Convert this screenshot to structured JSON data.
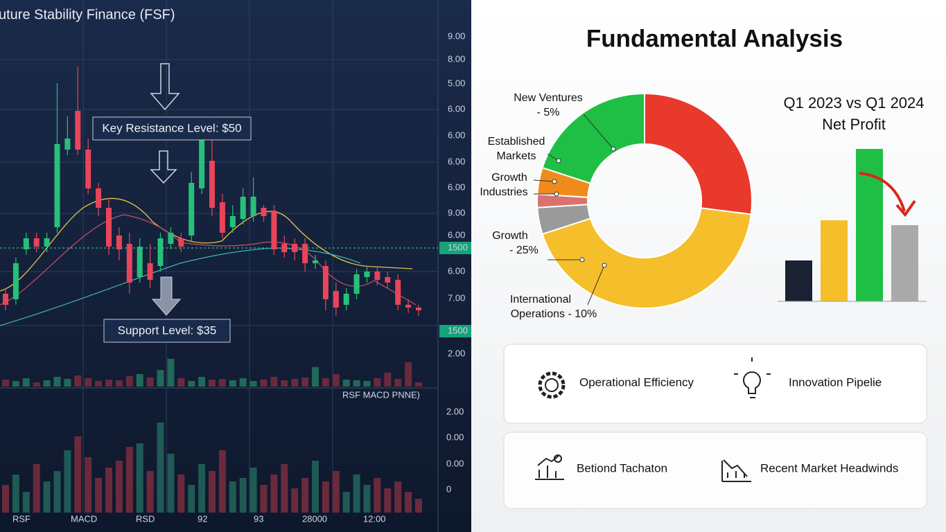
{
  "left_panel": {
    "title": "uture Stability Finance (FSF)",
    "resistance_label": "Key Resistance Level: $50",
    "support_label": "Support Level: $35",
    "price_axis_labels": [
      "9.00",
      "8.00",
      "5.00",
      "6.00",
      "6.00",
      "6.00",
      "6.00",
      "9.00",
      "6.00",
      "1500",
      "6.00",
      "7.00",
      "1500",
      "2.00"
    ],
    "indicator_axis_labels": [
      "2.00",
      "0.00",
      "0.00",
      "0"
    ],
    "indicator_title": "RSF MACD PNNE)",
    "x_labels": [
      "RSF",
      "MACD",
      "RSD",
      "92",
      "93",
      "28000",
      "12:00"
    ],
    "candles": [
      {
        "o": 24,
        "c": 20,
        "h": 26,
        "l": 18
      },
      {
        "o": 22,
        "c": 35,
        "h": 37,
        "l": 20
      },
      {
        "o": 40,
        "c": 44,
        "h": 46,
        "l": 38
      },
      {
        "o": 44,
        "c": 41,
        "h": 46,
        "l": 39
      },
      {
        "o": 41,
        "c": 44,
        "h": 46,
        "l": 39
      },
      {
        "o": 48,
        "c": 78,
        "h": 100,
        "l": 46
      },
      {
        "o": 76,
        "c": 80,
        "h": 88,
        "l": 74
      },
      {
        "o": 90,
        "c": 76,
        "h": 106,
        "l": 74
      },
      {
        "o": 76,
        "c": 62,
        "h": 80,
        "l": 60
      },
      {
        "o": 62,
        "c": 55,
        "h": 64,
        "l": 52
      },
      {
        "o": 55,
        "c": 41,
        "h": 58,
        "l": 38
      },
      {
        "o": 45,
        "c": 40,
        "h": 48,
        "l": 36
      },
      {
        "o": 42,
        "c": 28,
        "h": 46,
        "l": 24
      },
      {
        "o": 30,
        "c": 41,
        "h": 44,
        "l": 28
      },
      {
        "o": 35,
        "c": 29,
        "h": 42,
        "l": 26
      },
      {
        "o": 34,
        "c": 44,
        "h": 46,
        "l": 32
      },
      {
        "o": 42,
        "c": 46,
        "h": 48,
        "l": 40
      },
      {
        "o": 44,
        "c": 41,
        "h": 46,
        "l": 39
      },
      {
        "o": 45,
        "c": 64,
        "h": 68,
        "l": 43
      },
      {
        "o": 62,
        "c": 80,
        "h": 84,
        "l": 60
      },
      {
        "o": 72,
        "c": 55,
        "h": 80,
        "l": 52
      },
      {
        "o": 57,
        "c": 46,
        "h": 60,
        "l": 44
      },
      {
        "o": 48,
        "c": 52,
        "h": 56,
        "l": 46
      },
      {
        "o": 51,
        "c": 59,
        "h": 62,
        "l": 49
      },
      {
        "o": 52,
        "c": 59,
        "h": 66,
        "l": 50
      },
      {
        "o": 55,
        "c": 52,
        "h": 56,
        "l": 50
      },
      {
        "o": 54,
        "c": 40,
        "h": 56,
        "l": 38
      },
      {
        "o": 42,
        "c": 39,
        "h": 45,
        "l": 37
      },
      {
        "o": 42,
        "c": 39,
        "h": 44,
        "l": 36
      },
      {
        "o": 42,
        "c": 35,
        "h": 44,
        "l": 32
      },
      {
        "o": 35,
        "c": 36,
        "h": 38,
        "l": 33
      },
      {
        "o": 34,
        "c": 22,
        "h": 36,
        "l": 18
      },
      {
        "o": 25,
        "c": 19,
        "h": 28,
        "l": 16
      },
      {
        "o": 20,
        "c": 24,
        "h": 26,
        "l": 18
      },
      {
        "o": 24,
        "c": 31,
        "h": 33,
        "l": 22
      },
      {
        "o": 30,
        "c": 32,
        "h": 34,
        "l": 28
      },
      {
        "o": 32,
        "c": 29,
        "h": 34,
        "l": 27
      },
      {
        "o": 30,
        "c": 28,
        "h": 32,
        "l": 26
      },
      {
        "o": 29,
        "c": 20,
        "h": 31,
        "l": 18
      },
      {
        "o": 20,
        "c": 19,
        "h": 22,
        "l": 17
      },
      {
        "o": 19,
        "c": 18,
        "h": 20,
        "l": 16
      }
    ],
    "volume": [
      10,
      8,
      12,
      6,
      9,
      14,
      11,
      16,
      12,
      8,
      10,
      9,
      15,
      18,
      13,
      24,
      40,
      12,
      8,
      14,
      10,
      11,
      9,
      12,
      8,
      10,
      14,
      9,
      11,
      13,
      28,
      12,
      18,
      10,
      9,
      8,
      12,
      20,
      11,
      35,
      6
    ],
    "indicator": [
      40,
      55,
      30,
      70,
      45,
      60,
      90,
      110,
      80,
      50,
      65,
      75,
      95,
      100,
      60,
      130,
      85,
      55,
      40,
      70,
      60,
      90,
      45,
      50,
      65,
      40,
      55,
      70,
      35,
      50,
      75,
      45,
      60,
      30,
      55,
      40,
      50,
      35,
      45,
      30,
      20
    ]
  },
  "right_panel": {
    "title": "Fundamental Analysis",
    "donut": {
      "segments": [
        {
          "color": "#e8392c",
          "value": 27
        },
        {
          "color": "#f4bf2a",
          "value": 43
        },
        {
          "color": "#9a9a9a",
          "value": 4
        },
        {
          "color": "#d9736f",
          "value": 2
        },
        {
          "color": "#f08a1c",
          "value": 4
        },
        {
          "color": "#1fbf45",
          "value": 20
        }
      ],
      "labels": [
        "New Ventures",
        "- 5%",
        "Established",
        "Markets",
        "Growth",
        "Industries",
        "Growth",
        "- 25%",
        "International",
        "Operations - 10%"
      ]
    },
    "bar_chart": {
      "title": "Q1 2023 vs Q1 2024",
      "subtitle": "Net Profit",
      "bars": [
        {
          "color": "#1a2234",
          "value": 59
        },
        {
          "color": "#f4bf2a",
          "value": 117
        },
        {
          "color": "#1fbf45",
          "value": 220
        },
        {
          "color": "#aaaaaa",
          "value": 110
        }
      ]
    },
    "cards": [
      "Operational Efficiency",
      "Innovation Pipelie",
      "Betiond Tachaton",
      "Recent Market Headwinds"
    ]
  }
}
